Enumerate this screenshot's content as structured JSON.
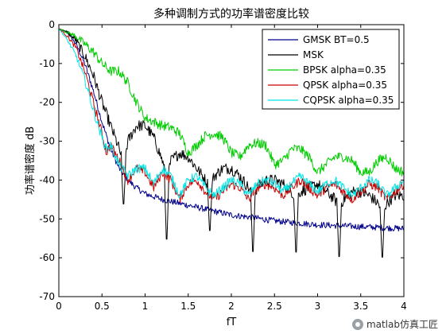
{
  "chart_data": {
    "type": "line",
    "title": "多种调制方式的功率谱密度比较",
    "xlabel": "fT",
    "ylabel": "功率谱密度 dB",
    "xlim": [
      0,
      4
    ],
    "ylim": [
      -70,
      0
    ],
    "xticks": [
      0,
      0.5,
      1,
      1.5,
      2,
      2.5,
      3,
      3.5,
      4
    ],
    "yticks": [
      0,
      -10,
      -20,
      -30,
      -40,
      -50,
      -60,
      -70
    ],
    "xtick_labels": [
      "0",
      "0.5",
      "1",
      "1.5",
      "2",
      "2.5",
      "3",
      "3.5",
      "4"
    ],
    "ytick_labels": [
      "0",
      "-10",
      "-20",
      "-30",
      "-40",
      "-50",
      "-60",
      "-70"
    ],
    "grid": false,
    "legend_position": "top-right",
    "series": [
      {
        "name": "GMSK BT=0.5",
        "color": "#00008b",
        "noise": 0.8,
        "points": [
          [
            0,
            -1
          ],
          [
            0.1,
            -2
          ],
          [
            0.2,
            -5
          ],
          [
            0.3,
            -10
          ],
          [
            0.4,
            -17
          ],
          [
            0.5,
            -25
          ],
          [
            0.6,
            -32
          ],
          [
            0.7,
            -37
          ],
          [
            0.8,
            -40
          ],
          [
            0.9,
            -42
          ],
          [
            1.0,
            -43.5
          ],
          [
            1.2,
            -45
          ],
          [
            1.4,
            -46
          ],
          [
            1.6,
            -47
          ],
          [
            1.8,
            -48
          ],
          [
            2.0,
            -49
          ],
          [
            2.2,
            -49.5
          ],
          [
            2.5,
            -50.5
          ],
          [
            3.0,
            -51.5
          ],
          [
            3.5,
            -52
          ],
          [
            4.0,
            -52.5
          ]
        ],
        "dips": []
      },
      {
        "name": "MSK",
        "color": "#000000",
        "noise": 1.5,
        "points": [
          [
            0,
            -1
          ],
          [
            0.1,
            -2
          ],
          [
            0.2,
            -4
          ],
          [
            0.3,
            -8
          ],
          [
            0.4,
            -13
          ],
          [
            0.5,
            -20
          ],
          [
            0.6,
            -26
          ],
          [
            0.7,
            -32
          ],
          [
            0.75,
            -36
          ],
          [
            0.8,
            -30
          ],
          [
            0.9,
            -26
          ],
          [
            1.0,
            -26
          ],
          [
            1.1,
            -29
          ],
          [
            1.2,
            -35
          ],
          [
            1.25,
            -40
          ],
          [
            1.3,
            -35
          ],
          [
            1.4,
            -33
          ],
          [
            1.5,
            -34
          ],
          [
            1.6,
            -37
          ],
          [
            1.7,
            -40
          ],
          [
            1.75,
            -42
          ],
          [
            1.8,
            -39
          ],
          [
            1.9,
            -37
          ],
          [
            2.0,
            -37
          ],
          [
            2.1,
            -39
          ],
          [
            2.2,
            -42
          ],
          [
            2.25,
            -44
          ],
          [
            2.3,
            -42
          ],
          [
            2.4,
            -40
          ],
          [
            2.5,
            -40
          ],
          [
            2.6,
            -41
          ],
          [
            2.7,
            -43
          ],
          [
            2.75,
            -45
          ],
          [
            2.8,
            -43
          ],
          [
            2.9,
            -42
          ],
          [
            3.0,
            -41
          ],
          [
            3.1,
            -43
          ],
          [
            3.2,
            -45
          ],
          [
            3.25,
            -47
          ],
          [
            3.3,
            -45
          ],
          [
            3.4,
            -43
          ],
          [
            3.5,
            -43
          ],
          [
            3.6,
            -44
          ],
          [
            3.7,
            -46
          ],
          [
            3.75,
            -48
          ],
          [
            3.8,
            -46
          ],
          [
            3.9,
            -44
          ],
          [
            4.0,
            -44
          ]
        ],
        "dips": [
          [
            0.75,
            -48
          ],
          [
            1.25,
            -58
          ],
          [
            1.75,
            -55
          ],
          [
            2.25,
            -61
          ],
          [
            2.75,
            -61
          ],
          [
            3.25,
            -62
          ],
          [
            3.75,
            -62
          ]
        ]
      },
      {
        "name": "BPSK alpha=0.35",
        "color": "#00cc00",
        "noise": 1.3,
        "points": [
          [
            0,
            -1
          ],
          [
            0.1,
            -2
          ],
          [
            0.2,
            -3
          ],
          [
            0.3,
            -5
          ],
          [
            0.4,
            -7
          ],
          [
            0.5,
            -10
          ],
          [
            0.6,
            -12
          ],
          [
            0.7,
            -12
          ],
          [
            0.8,
            -15
          ],
          [
            0.9,
            -20
          ],
          [
            1.0,
            -24
          ],
          [
            1.1,
            -25
          ],
          [
            1.2,
            -26
          ],
          [
            1.3,
            -26.5
          ],
          [
            1.4,
            -28
          ],
          [
            1.5,
            -33
          ],
          [
            1.6,
            -31
          ],
          [
            1.7,
            -28.5
          ],
          [
            1.8,
            -28
          ],
          [
            1.9,
            -29
          ],
          [
            2.0,
            -33
          ],
          [
            2.1,
            -34
          ],
          [
            2.2,
            -31
          ],
          [
            2.3,
            -30.5
          ],
          [
            2.4,
            -31
          ],
          [
            2.5,
            -36
          ],
          [
            2.6,
            -35
          ],
          [
            2.7,
            -32
          ],
          [
            2.8,
            -32
          ],
          [
            2.9,
            -34
          ],
          [
            3.0,
            -38
          ],
          [
            3.1,
            -36
          ],
          [
            3.2,
            -34
          ],
          [
            3.3,
            -34
          ],
          [
            3.4,
            -35
          ],
          [
            3.5,
            -38
          ],
          [
            3.6,
            -38
          ],
          [
            3.7,
            -35
          ],
          [
            3.8,
            -34
          ],
          [
            3.9,
            -37
          ],
          [
            4.0,
            -38
          ]
        ],
        "dips": []
      },
      {
        "name": "QPSK alpha=0.35",
        "color": "#cc0000",
        "noise": 1.2,
        "points": [
          [
            0,
            -1
          ],
          [
            0.1,
            -3
          ],
          [
            0.2,
            -6
          ],
          [
            0.3,
            -12
          ],
          [
            0.4,
            -20
          ],
          [
            0.5,
            -28
          ],
          [
            0.55,
            -33
          ],
          [
            0.6,
            -31
          ],
          [
            0.7,
            -35
          ],
          [
            0.8,
            -40
          ],
          [
            0.9,
            -37
          ],
          [
            1.0,
            -38
          ],
          [
            1.1,
            -42
          ],
          [
            1.2,
            -38
          ],
          [
            1.3,
            -40
          ],
          [
            1.4,
            -45
          ],
          [
            1.5,
            -41
          ],
          [
            1.6,
            -40
          ],
          [
            1.7,
            -43
          ],
          [
            1.8,
            -45
          ],
          [
            1.9,
            -43
          ],
          [
            2.0,
            -41
          ],
          [
            2.1,
            -42
          ],
          [
            2.2,
            -45
          ],
          [
            2.3,
            -42
          ],
          [
            2.4,
            -41
          ],
          [
            2.5,
            -42
          ],
          [
            2.6,
            -44
          ],
          [
            2.7,
            -42
          ],
          [
            2.8,
            -40
          ],
          [
            2.9,
            -42
          ],
          [
            3.0,
            -44
          ],
          [
            3.1,
            -42
          ],
          [
            3.2,
            -41
          ],
          [
            3.3,
            -43
          ],
          [
            3.4,
            -45
          ],
          [
            3.5,
            -43
          ],
          [
            3.6,
            -41
          ],
          [
            3.7,
            -42
          ],
          [
            3.8,
            -45
          ],
          [
            3.9,
            -43
          ],
          [
            4.0,
            -41
          ]
        ],
        "dips": []
      },
      {
        "name": "CQPSK alpha=0.35",
        "color": "#00e5e5",
        "noise": 1.2,
        "points": [
          [
            0,
            -1
          ],
          [
            0.1,
            -4
          ],
          [
            0.2,
            -8
          ],
          [
            0.3,
            -14
          ],
          [
            0.4,
            -22
          ],
          [
            0.5,
            -29
          ],
          [
            0.55,
            -32
          ],
          [
            0.6,
            -31
          ],
          [
            0.7,
            -36
          ],
          [
            0.8,
            -39
          ],
          [
            0.9,
            -37
          ],
          [
            1.0,
            -37
          ],
          [
            1.1,
            -41
          ],
          [
            1.2,
            -37
          ],
          [
            1.3,
            -39
          ],
          [
            1.4,
            -44
          ],
          [
            1.5,
            -40
          ],
          [
            1.6,
            -39
          ],
          [
            1.7,
            -42
          ],
          [
            1.8,
            -44
          ],
          [
            1.9,
            -42
          ],
          [
            2.0,
            -40
          ],
          [
            2.1,
            -41
          ],
          [
            2.2,
            -44
          ],
          [
            2.3,
            -41
          ],
          [
            2.4,
            -40
          ],
          [
            2.5,
            -41
          ],
          [
            2.6,
            -43
          ],
          [
            2.7,
            -41
          ],
          [
            2.8,
            -39
          ],
          [
            2.9,
            -41
          ],
          [
            3.0,
            -43
          ],
          [
            3.1,
            -41
          ],
          [
            3.2,
            -40
          ],
          [
            3.3,
            -42
          ],
          [
            3.4,
            -44
          ],
          [
            3.5,
            -42
          ],
          [
            3.6,
            -40
          ],
          [
            3.7,
            -41
          ],
          [
            3.8,
            -44
          ],
          [
            3.9,
            -42
          ],
          [
            4.0,
            -40
          ]
        ],
        "dips": []
      }
    ]
  },
  "watermark": {
    "text": "matlab仿真工匠",
    "icon": "circle-logo-icon"
  }
}
